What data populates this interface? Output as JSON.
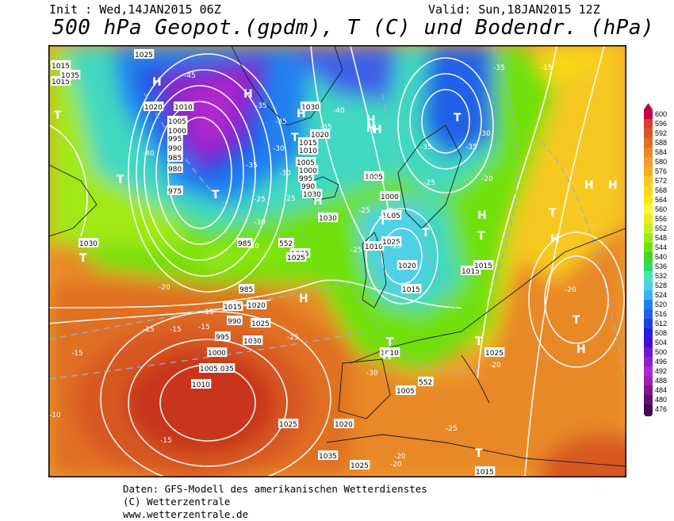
{
  "header": {
    "init": "Init : Wed,14JAN2015 06Z",
    "valid": "Valid: Sun,18JAN2015 12Z",
    "title": "500 hPa Geopot.(gpdm), T (C) und Bodendr. (hPa)"
  },
  "legend": {
    "levels": [
      "600",
      "596",
      "592",
      "588",
      "584",
      "580",
      "576",
      "572",
      "568",
      "564",
      "560",
      "556",
      "552",
      "548",
      "544",
      "540",
      "536",
      "532",
      "528",
      "524",
      "520",
      "516",
      "512",
      "508",
      "504",
      "500",
      "496",
      "492",
      "488",
      "484",
      "480",
      "476"
    ],
    "colors": [
      "#c0004a",
      "#d8402a",
      "#d85820",
      "#e07020",
      "#e88828",
      "#f0a030",
      "#f0b020",
      "#f8c820",
      "#f8d818",
      "#f8e818",
      "#f8f838",
      "#e8f020",
      "#c8f020",
      "#a0e818",
      "#70e010",
      "#40d820",
      "#30d870",
      "#40e8b0",
      "#50d0e8",
      "#40b0f0",
      "#2080f0",
      "#2060e8",
      "#2040e0",
      "#2020e0",
      "#4010d8",
      "#7018d0",
      "#9020c8",
      "#b028d0",
      "#a020b0",
      "#801890",
      "#601070",
      "#400850"
    ]
  },
  "map": {
    "pressure_labels": [
      "1025",
      "1015",
      "1015",
      "1020",
      "1010",
      "1005",
      "1000",
      "995",
      "990",
      "985",
      "980",
      "975",
      "1030",
      "1025",
      "1020",
      "1015",
      "1010",
      "1005",
      "1000",
      "995",
      "990",
      "985",
      "1030",
      "1035",
      "1030",
      "1025",
      "1020",
      "1015",
      "1005",
      "1000",
      "1005",
      "1010",
      "1015",
      "1025",
      "1030",
      "1035",
      "1030",
      "1025",
      "1020",
      "1015",
      "1025",
      "1015",
      "1020",
      "1025",
      "1010",
      "1005",
      "1000",
      "995",
      "990",
      "985",
      "1005",
      "1010",
      "1015",
      "1020",
      "1035",
      "1030",
      "1025",
      "1025",
      "1015"
    ],
    "temp_labels": [
      "-45",
      "-35",
      "-40",
      "-30",
      "-35",
      "-25",
      "-35",
      "-30",
      "-30",
      "-25",
      "-30",
      "-20",
      "-20",
      "-15",
      "-15",
      "-15",
      "-15",
      "-10",
      "-15",
      "-15",
      "-20",
      "-25",
      "-30",
      "-40",
      "-35",
      "-35",
      "-35",
      "-35",
      "-30",
      "-25",
      "-25",
      "-25",
      "-20",
      "-20",
      "-20",
      "-20",
      "-25",
      "-20",
      "-15"
    ],
    "centers": [
      "H",
      "H",
      "T",
      "H",
      "T",
      "H",
      "H",
      "H",
      "T",
      "H",
      "T",
      "T",
      "H",
      "T",
      "T",
      "T",
      "H",
      "T",
      "H",
      "H",
      "H",
      "T",
      "H",
      "T",
      "H",
      "T",
      "T",
      "H",
      "T",
      "T",
      "H"
    ],
    "height_labels": [
      "552",
      "552"
    ]
  },
  "footer": {
    "line1": "Daten: GFS-Modell des amerikanischen Wetterdienstes",
    "line2": "(C) Wetterzentrale",
    "line3": "www.wetterzentrale.de"
  }
}
